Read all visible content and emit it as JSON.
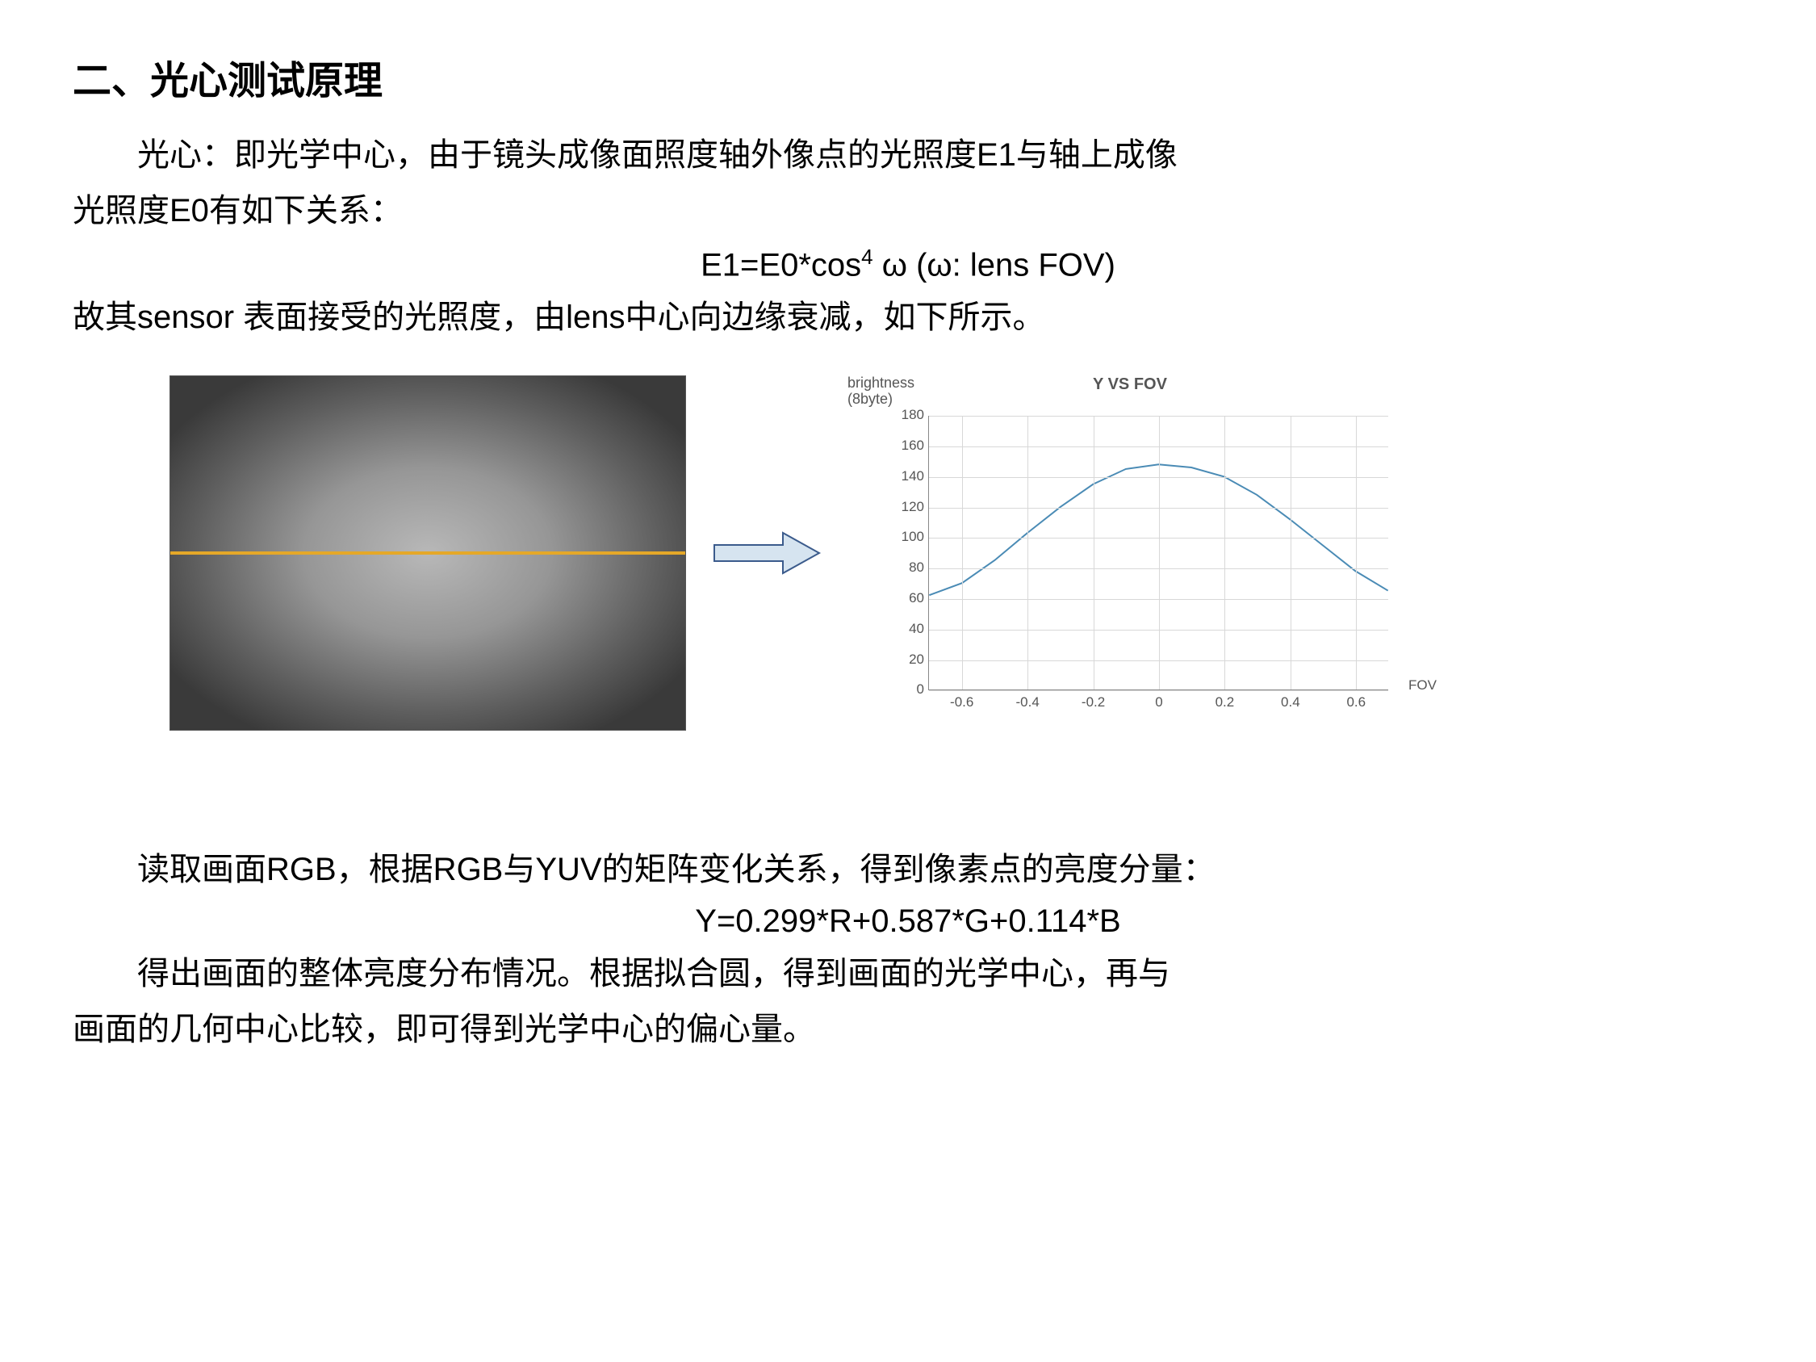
{
  "heading": "二、光心测试原理",
  "para1_line1": "光心：即光学中心，由于镜头成像面照度轴外像点的光照度E1与轴上成像",
  "para1_line2": "光照度E0有如下关系：",
  "formula1_main": "E1=E0*cos",
  "formula1_exp": "4",
  "formula1_tail": " ω       (ω:  lens FOV)",
  "para2": "故其sensor 表面接受的光照度，由lens中心向边缘衰减，如下所示。",
  "vignette": {
    "gradient_center_color": "#b8b8b8",
    "gradient_edge_color": "#3a3a3a",
    "midline_color": "#e5a828"
  },
  "arrow": {
    "fill": "#d6e4f0",
    "stroke": "#3b5b8c"
  },
  "chart": {
    "type": "line",
    "title": "Y VS FOV",
    "ylabel_line1": "brightness",
    "ylabel_line2": "(8byte)",
    "xaxis_label": "FOV",
    "ylim": [
      0,
      180
    ],
    "ytick_step": 20,
    "yticks": [
      0,
      20,
      40,
      60,
      80,
      100,
      120,
      140,
      160,
      180
    ],
    "xlim": [
      -0.7,
      0.7
    ],
    "xticks": [
      -0.6,
      -0.4,
      -0.2,
      0,
      0.2,
      0.4,
      0.6
    ],
    "line_color": "#4a8bb5",
    "grid_color": "#d8d8d8",
    "background_color": "#ffffff",
    "data_x": [
      -0.7,
      -0.6,
      -0.5,
      -0.4,
      -0.3,
      -0.2,
      -0.1,
      0.0,
      0.1,
      0.2,
      0.3,
      0.4,
      0.5,
      0.6,
      0.7
    ],
    "data_y": [
      62,
      70,
      85,
      103,
      120,
      135,
      145,
      148,
      146,
      140,
      128,
      112,
      95,
      78,
      65
    ]
  },
  "para3": "读取画面RGB，根据RGB与YUV的矩阵变化关系，得到像素点的亮度分量：",
  "formula2": "Y=0.299*R+0.587*G+0.114*B",
  "para4_line1": "得出画面的整体亮度分布情况。根据拟合圆，得到画面的光学中心，再与",
  "para4_line2": "画面的几何中心比较，即可得到光学中心的偏心量。"
}
